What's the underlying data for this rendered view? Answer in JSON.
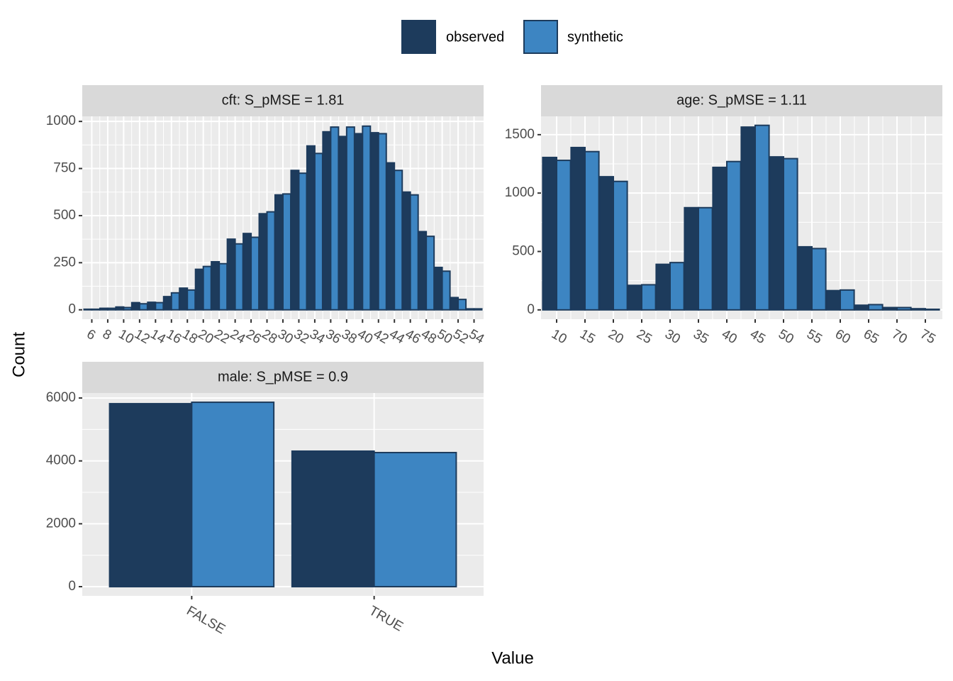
{
  "legend": {
    "series": [
      {
        "name": "observed",
        "color": "#1d3b5c"
      },
      {
        "name": "synthetic",
        "color": "#3d85c2"
      }
    ]
  },
  "xlabel": "Value",
  "ylabel": "Count",
  "chart_data": [
    {
      "type": "bar",
      "title": "cft: S_pMSE = 1.81",
      "x": [
        6,
        8,
        10,
        12,
        14,
        16,
        18,
        20,
        22,
        24,
        26,
        28,
        30,
        32,
        34,
        36,
        38,
        40,
        42,
        44,
        46,
        48,
        50,
        52,
        54
      ],
      "series": [
        {
          "values": [
            3,
            8,
            15,
            38,
            40,
            70,
            115,
            215,
            255,
            375,
            405,
            510,
            610,
            740,
            870,
            945,
            920,
            935,
            940,
            780,
            625,
            415,
            225,
            65,
            5
          ]
        },
        {
          "values": [
            3,
            8,
            12,
            32,
            38,
            90,
            105,
            230,
            245,
            350,
            385,
            520,
            615,
            725,
            830,
            970,
            970,
            975,
            935,
            740,
            610,
            390,
            205,
            55,
            5
          ]
        }
      ],
      "xlim": [
        4.8,
        55.2
      ],
      "xticks": [
        6,
        8,
        10,
        12,
        14,
        16,
        18,
        20,
        22,
        24,
        26,
        28,
        30,
        32,
        34,
        36,
        38,
        40,
        42,
        44,
        46,
        48,
        50,
        52,
        54
      ],
      "ylim": [
        -50,
        1027
      ],
      "yticks": [
        0,
        250,
        500,
        750,
        1000
      ],
      "grid": true
    },
    {
      "type": "bar",
      "title": "age: S_pMSE = 1.11",
      "x": [
        10,
        15,
        20,
        25,
        30,
        35,
        40,
        45,
        50,
        55,
        60,
        65,
        70,
        75
      ],
      "series": [
        {
          "values": [
            1305,
            1390,
            1140,
            210,
            390,
            875,
            1220,
            1565,
            1310,
            540,
            165,
            40,
            20,
            10
          ]
        },
        {
          "values": [
            1280,
            1355,
            1100,
            215,
            405,
            875,
            1270,
            1580,
            1295,
            525,
            170,
            45,
            20,
            5
          ]
        }
      ],
      "xlim": [
        7.25,
        78
      ],
      "xticks": [
        10,
        15,
        20,
        25,
        30,
        35,
        40,
        45,
        50,
        55,
        60,
        65,
        70,
        75
      ],
      "ylim": [
        -80,
        1657
      ],
      "yticks": [
        0,
        500,
        1000,
        1500
      ],
      "grid": true
    },
    {
      "type": "bar",
      "title": "male: S_pMSE = 0.9",
      "categories": [
        "FALSE",
        "TRUE"
      ],
      "series": [
        {
          "values": [
            5820,
            4310
          ]
        },
        {
          "values": [
            5865,
            4265
          ]
        }
      ],
      "ylim": [
        -293,
        6160
      ],
      "yticks": [
        0,
        2000,
        4000,
        6000
      ],
      "grid": true
    }
  ]
}
